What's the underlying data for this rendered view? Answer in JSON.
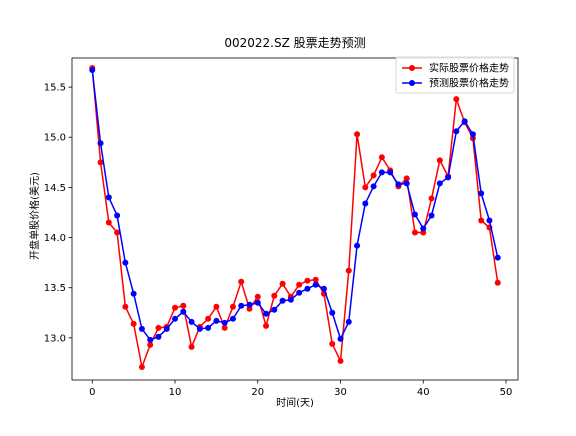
{
  "chart_data": {
    "type": "line",
    "title": "002022.SZ 股票走势预测",
    "xlabel": "时间(天)",
    "ylabel": "开盘单股价格(美元)",
    "xlim": [
      -2.45,
      51.45
    ],
    "ylim": [
      12.58,
      15.79
    ],
    "xticks": [
      0,
      10,
      20,
      30,
      40,
      50
    ],
    "yticks": [
      13.0,
      13.5,
      14.0,
      14.5,
      15.0,
      15.5
    ],
    "ytick_labels": [
      "13.0",
      "13.5",
      "14.0",
      "14.5",
      "15.0",
      "15.5"
    ],
    "grid": false,
    "legend": "top-right",
    "x": [
      0,
      1,
      2,
      3,
      4,
      5,
      6,
      7,
      8,
      9,
      10,
      11,
      12,
      13,
      14,
      15,
      16,
      17,
      18,
      19,
      20,
      21,
      22,
      23,
      24,
      25,
      26,
      27,
      28,
      29,
      30,
      31,
      32,
      33,
      34,
      35,
      36,
      37,
      38,
      39,
      40,
      41,
      42,
      43,
      44,
      45,
      46,
      47,
      48,
      49
    ],
    "series": [
      {
        "name": "实际股票价格走势",
        "color": "#ff0000",
        "values": [
          15.69,
          14.75,
          14.15,
          14.05,
          13.31,
          13.14,
          12.71,
          12.93,
          13.1,
          13.11,
          13.3,
          13.32,
          12.91,
          13.11,
          13.19,
          13.31,
          13.1,
          13.31,
          13.56,
          13.29,
          13.41,
          13.12,
          13.42,
          13.54,
          13.41,
          13.53,
          13.57,
          13.58,
          13.44,
          12.94,
          12.77,
          13.67,
          15.03,
          14.5,
          14.62,
          14.8,
          14.67,
          14.51,
          14.59,
          14.05,
          14.05,
          14.39,
          14.77,
          14.61,
          15.38,
          15.15,
          14.99,
          14.17,
          14.1,
          13.55
        ]
      },
      {
        "name": "预测股票价格走势",
        "color": "#0000ff",
        "values": [
          15.67,
          14.94,
          14.4,
          14.22,
          13.75,
          13.44,
          13.09,
          12.98,
          13.01,
          13.09,
          13.19,
          13.26,
          13.16,
          13.09,
          13.1,
          13.17,
          13.15,
          13.19,
          13.32,
          13.33,
          13.35,
          13.24,
          13.28,
          13.37,
          13.38,
          13.45,
          13.49,
          13.53,
          13.49,
          13.25,
          12.99,
          13.16,
          13.92,
          14.34,
          14.51,
          14.65,
          14.65,
          14.53,
          14.54,
          14.23,
          14.09,
          14.22,
          14.54,
          14.6,
          15.06,
          15.16,
          15.03,
          14.44,
          14.17,
          13.8
        ]
      }
    ]
  }
}
